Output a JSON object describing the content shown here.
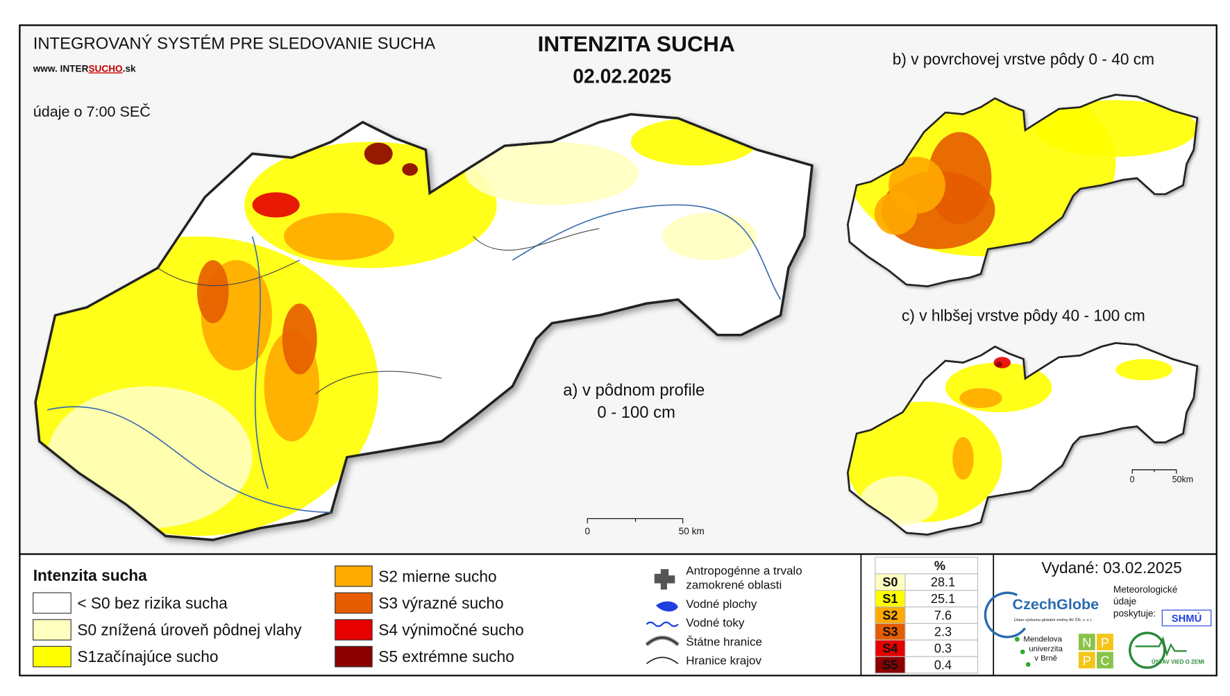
{
  "header": {
    "system": "INTEGROVANÝ SYSTÉM PRE SLEDOVANIE SUCHA",
    "website_prefix": "www. INTER",
    "website_highlight": "SUCHO",
    "website_suffix": ".sk",
    "time_note": "údaje o 7:00 SEČ"
  },
  "title": "INTENZITA SUCHA",
  "date": "02.02.2025",
  "maps": [
    {
      "label": "a) v pôdnom profile",
      "sublabel": "0 - 100 cm"
    },
    {
      "label": "b) v povrchovej vrstve pôdy 0 - 40 cm"
    },
    {
      "label": "c) v hlbšej vrstve pôdy 40 - 100 cm"
    }
  ],
  "scale_bars": [
    {
      "start": "0",
      "end": "50 km"
    },
    {
      "start": "0",
      "end": "50km"
    }
  ],
  "legend": {
    "title": "Intenzita sucha",
    "items": [
      {
        "label": "< S0 bez rizika sucha",
        "color": "#ffffff"
      },
      {
        "label": "S0 znížená úroveň pôdnej vlahy",
        "color": "#ffffc0"
      },
      {
        "label": "S1začínajúce sucho",
        "color": "#ffff00"
      },
      {
        "label": "S2 mierne sucho",
        "color": "#ffaa00"
      },
      {
        "label": "S3 výrazné sucho",
        "color": "#e65c00"
      },
      {
        "label": "S4 výnimočné sucho",
        "color": "#e60000"
      },
      {
        "label": "S5 extrémne sucho",
        "color": "#8b0000"
      }
    ]
  },
  "symbols": [
    {
      "lines": [
        "Antropogénne a trvalo",
        "zamokrené oblasti"
      ]
    },
    {
      "lines": [
        "Vodné plochy"
      ]
    },
    {
      "lines": [
        "Vodné toky"
      ]
    },
    {
      "lines": [
        "Štátne hranice"
      ]
    },
    {
      "lines": [
        "Hranice krajov"
      ]
    }
  ],
  "stats": {
    "header": "%",
    "rows": [
      {
        "class": "S0",
        "percent": 28.1,
        "color": "#ffffc0"
      },
      {
        "class": "S1",
        "percent": 25.1,
        "color": "#ffff00"
      },
      {
        "class": "S2",
        "percent": 7.6,
        "color": "#ffaa00"
      },
      {
        "class": "S3",
        "percent": 2.3,
        "color": "#e65c00"
      },
      {
        "class": "S4",
        "percent": 0.3,
        "color": "#e60000"
      },
      {
        "class": "S5",
        "percent": 0.4,
        "color": "#8b0000"
      }
    ]
  },
  "issued": "Vydané: 03.02.2025",
  "logos": {
    "czechglobe": "CzechGlobe",
    "czechglobe_sub": "Ústav výzkumu globální změny AV ČR, v. v. i.",
    "meteo": [
      "Meteorologické",
      "údaje",
      "poskytuje:"
    ],
    "shmu": "SHMÚ",
    "mendel": [
      "Mendelova",
      "univerzita",
      "v Brně"
    ],
    "nppc": [
      "N",
      "P",
      "P",
      "C"
    ],
    "uvz": "ÚSTAV VIED O ZEMI"
  }
}
